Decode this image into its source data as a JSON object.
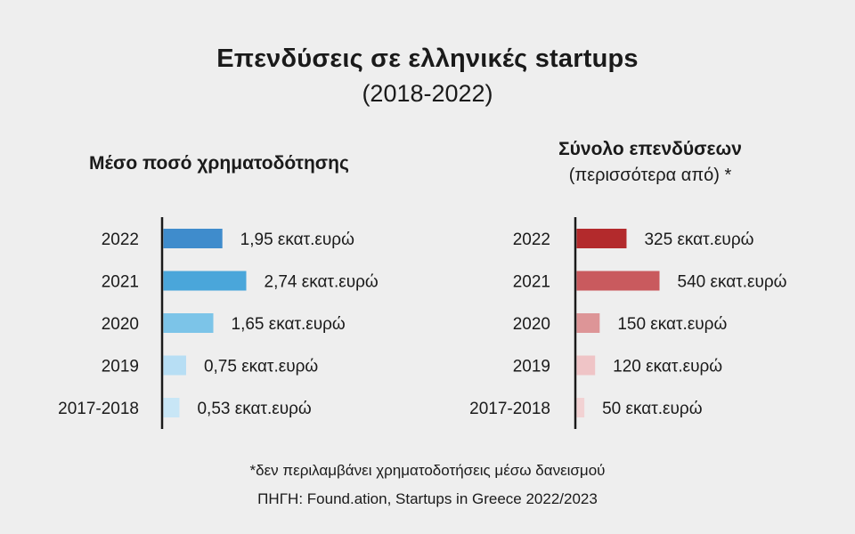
{
  "title": "Επενδύσεις σε ελληνικές startups",
  "subtitle": "(2018-2022)",
  "footnote": "*δεν περιλαμβάνει χρηματοδοτήσεις μέσω δανεισμού",
  "source": "ΠΗΓΗ: Found.ation, Startups in Greece 2022/2023",
  "chart_data": [
    {
      "type": "bar",
      "orientation": "horizontal",
      "title": "Μέσο ποσό χρηματοδότησης",
      "subtitle": "",
      "categories": [
        "2022",
        "2021",
        "2020",
        "2019",
        "2017-2018"
      ],
      "values": [
        1.95,
        2.74,
        1.65,
        0.75,
        0.53
      ],
      "value_labels": [
        "1,95 εκατ.ευρώ",
        "2,74 εκατ.ευρώ",
        "1,65 εκατ.ευρώ",
        "0,75 εκατ.ευρώ",
        "0,53 εκατ.ευρώ"
      ],
      "colors": [
        "#3f8ccc",
        "#4aa6da",
        "#7cc4e8",
        "#b7def4",
        "#c8e6f6"
      ],
      "grid": false,
      "legend": "none"
    },
    {
      "type": "bar",
      "orientation": "horizontal",
      "title": "Σύνολο επενδύσεων",
      "subtitle": "(περισσότερα από) *",
      "categories": [
        "2022",
        "2021",
        "2020",
        "2019",
        "2017-2018"
      ],
      "values": [
        325,
        540,
        150,
        120,
        50
      ],
      "value_labels": [
        "325 εκατ.ευρώ",
        "540 εκατ.ευρώ",
        "150 εκατ.ευρώ",
        "120 εκατ.ευρώ",
        "50 εκατ.ευρώ"
      ],
      "colors": [
        "#b32a2c",
        "#c95a5e",
        "#dd9597",
        "#efc4c6",
        "#f2d2d3"
      ],
      "grid": false,
      "legend": "none"
    }
  ]
}
